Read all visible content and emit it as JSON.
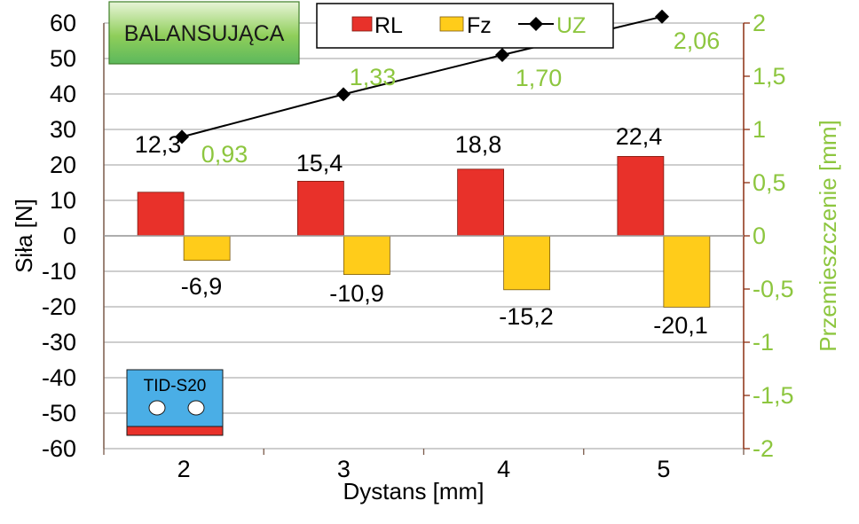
{
  "chart_data": {
    "type": "bar",
    "categories": [
      "2",
      "3",
      "4",
      "5"
    ],
    "xlabel": "Dystans [mm]",
    "ylabel": "Siła [N]",
    "y2label": "Przemieszczenie [mm]",
    "ylim": [
      -60,
      60
    ],
    "y2lim": [
      -2,
      2
    ],
    "yticks": [
      "60",
      "50",
      "40",
      "30",
      "20",
      "10",
      "0",
      "-10",
      "-20",
      "-30",
      "-40",
      "-50",
      "-60"
    ],
    "y2ticks": [
      "2",
      "1,5",
      "1",
      "0,5",
      "0",
      "-0,5",
      "-1",
      "-1,5",
      "-2"
    ],
    "series": [
      {
        "name": "RL",
        "type": "bar",
        "color": "#e8312a",
        "values": [
          12.3,
          15.4,
          18.8,
          22.4
        ],
        "labels": [
          "12,3",
          "15,4",
          "18,8",
          "22,4"
        ]
      },
      {
        "name": "Fz",
        "type": "bar",
        "color": "#ffcc1a",
        "values": [
          -6.9,
          -10.9,
          -15.2,
          -20.1
        ],
        "labels": [
          "-6,9",
          "-10,9",
          "-15,2",
          "-20,1"
        ]
      },
      {
        "name": "UZ",
        "type": "line",
        "axis": "right",
        "color": "#000000",
        "marker": "diamond",
        "values": [
          0.93,
          1.33,
          1.7,
          2.06
        ],
        "labels": [
          "0,93",
          "1,33",
          "1,70",
          "2,06"
        ]
      }
    ],
    "legend_position": "top-center",
    "grid": "horizontal",
    "title_box": {
      "text": "BALANSUJĄCA",
      "color": "#5cb85c"
    },
    "inset": {
      "text": "TID-S20",
      "color": "#4aaee6",
      "stripe_color": "#e8312a",
      "holes": 2
    }
  }
}
